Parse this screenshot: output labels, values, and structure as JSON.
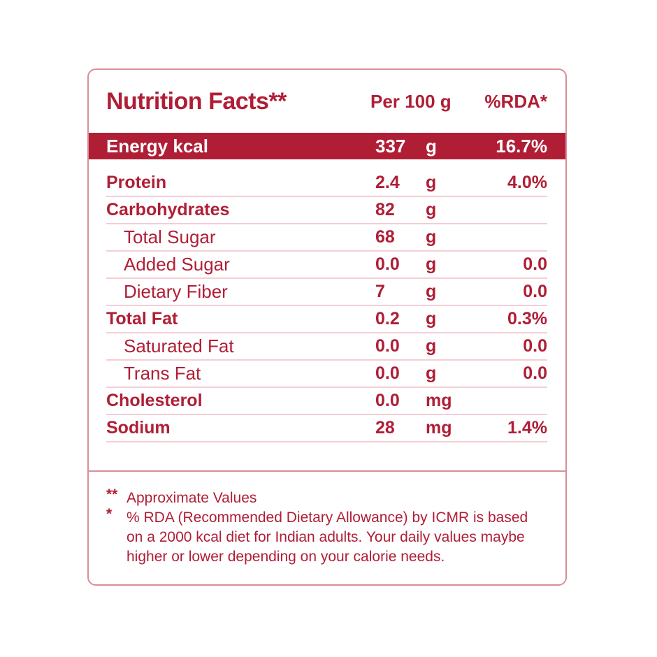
{
  "colors": {
    "accent_crimson": "#B01E36",
    "band_text": "#FFFFFF",
    "row_divider_pink": "#F4CED5",
    "card_border_pink": "#D98E97",
    "background": "#FFFFFF"
  },
  "header": {
    "title": "Nutrition Facts**",
    "col_amount": "Per 100 g",
    "col_rda": "%RDA*"
  },
  "energy_row": {
    "label": "Energy kcal",
    "value": "337",
    "unit": "g",
    "rda": "16.7%"
  },
  "table": {
    "rows": [
      {
        "label": "Protein",
        "value": "2.4",
        "unit": "g",
        "rda": "4.0%"
      },
      {
        "label": "Carbohydrates",
        "value": "82",
        "unit": "g",
        "rda": ""
      },
      {
        "label": "Total Sugar",
        "value": "68",
        "unit": "g",
        "rda": ""
      },
      {
        "label": "Added Sugar",
        "value": "0.0",
        "unit": "g",
        "rda": "0.0"
      },
      {
        "label": "Dietary Fiber",
        "value": "7",
        "unit": "g",
        "rda": "0.0"
      },
      {
        "label": "Total Fat",
        "value": "0.2",
        "unit": "g",
        "rda": "0.3%"
      },
      {
        "label": "Saturated Fat",
        "value": "0.0",
        "unit": "g",
        "rda": "0.0"
      },
      {
        "label": "Trans Fat",
        "value": "0.0",
        "unit": "g",
        "rda": "0.0"
      },
      {
        "label": "Cholesterol",
        "value": "0.0",
        "unit": "mg",
        "rda": ""
      },
      {
        "label": "Sodium",
        "value": "28",
        "unit": "mg",
        "rda": "1.4%"
      }
    ]
  },
  "footnotes": [
    {
      "marker": "**",
      "text": "Approximate Values"
    },
    {
      "marker": "*",
      "text": "% RDA (Recommended Dietary Allowance) by ICMR is based\non a 2000 kcal diet for Indian adults. Your daily values maybe\nhigher or lower depending on your calorie needs."
    }
  ]
}
